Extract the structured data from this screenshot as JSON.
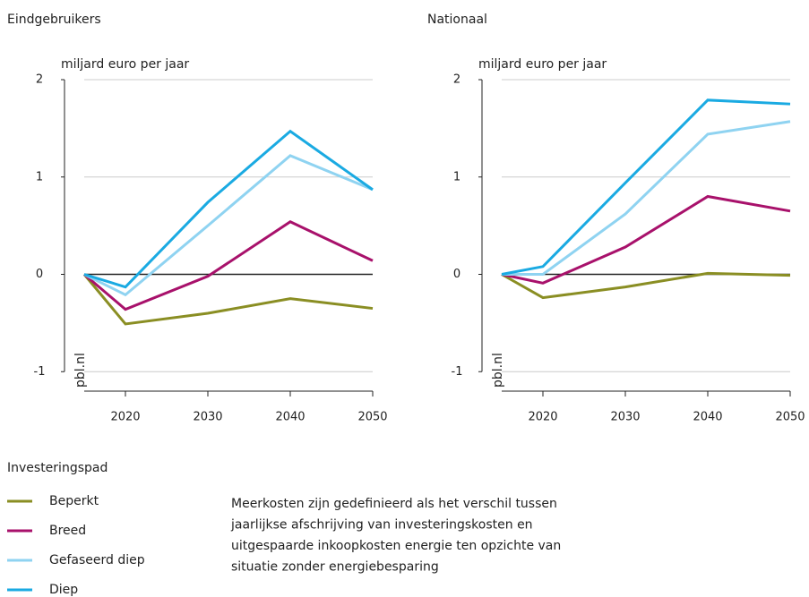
{
  "chart_data": [
    {
      "type": "line",
      "title": "Eindgebruikers",
      "y_label": "miljard euro per jaar",
      "source": "pbl.nl",
      "x": [
        2015,
        2020,
        2030,
        2040,
        2050
      ],
      "xlim": [
        2015,
        2050
      ],
      "xticks": [
        2020,
        2030,
        2040,
        2050
      ],
      "ylim": [
        -1.2,
        2
      ],
      "yticks": [
        -1,
        0,
        1,
        2
      ],
      "grid": true,
      "series": [
        {
          "name": "Beperkt",
          "color": "#8a8e23",
          "values": [
            0,
            -0.51,
            -0.4,
            -0.25,
            -0.35
          ]
        },
        {
          "name": "Breed",
          "color": "#a8116b",
          "values": [
            0,
            -0.36,
            -0.02,
            0.54,
            0.14
          ]
        },
        {
          "name": "Gefaseerd diep",
          "color": "#8fd3f1",
          "values": [
            0,
            -0.21,
            0.5,
            1.22,
            0.87
          ]
        },
        {
          "name": "Diep",
          "color": "#1aaae2",
          "values": [
            0,
            -0.13,
            0.74,
            1.47,
            0.87
          ]
        }
      ]
    },
    {
      "type": "line",
      "title": "Nationaal",
      "y_label": "miljard euro per jaar",
      "source": "pbl.nl",
      "x": [
        2015,
        2020,
        2030,
        2040,
        2050
      ],
      "xlim": [
        2015,
        2050
      ],
      "xticks": [
        2020,
        2030,
        2040,
        2050
      ],
      "ylim": [
        -1.2,
        2
      ],
      "yticks": [
        -1,
        0,
        1,
        2
      ],
      "grid": true,
      "series": [
        {
          "name": "Beperkt",
          "color": "#8a8e23",
          "values": [
            0,
            -0.24,
            -0.13,
            0.01,
            -0.01
          ]
        },
        {
          "name": "Breed",
          "color": "#a8116b",
          "values": [
            0,
            -0.09,
            0.28,
            0.8,
            0.65
          ]
        },
        {
          "name": "Gefaseerd diep",
          "color": "#8fd3f1",
          "values": [
            0,
            0,
            0.62,
            1.44,
            1.57
          ]
        },
        {
          "name": "Diep",
          "color": "#1aaae2",
          "values": [
            0,
            0.08,
            0.94,
            1.79,
            1.75
          ]
        }
      ]
    }
  ],
  "legend": {
    "title": "Investeringspad"
  },
  "note": [
    "Meerkosten zijn gedefinieerd als het verschil tussen",
    "jaarlijkse afschrijving van investeringskosten en",
    "uitgespaarde inkoopkosten energie ten opzichte van",
    "situatie zonder energiebesparing"
  ]
}
